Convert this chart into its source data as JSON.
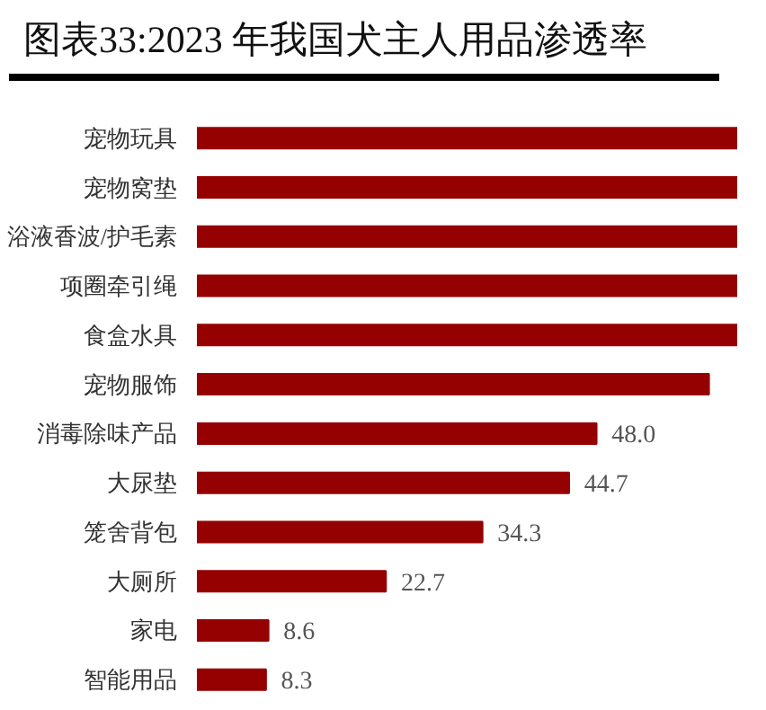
{
  "chart_data": {
    "type": "bar",
    "orientation": "horizontal",
    "title": "图表33:2023 年我国犬主人用品渗透率",
    "categories": [
      "宠物玩具",
      "宠物窝垫",
      "浴液香波/护毛素",
      "项圈牵引绳",
      "食盒水具",
      "宠物服饰",
      "消毒除味产品",
      "大尿垫",
      "笼舍背包",
      "大厕所",
      "家电",
      "智能用品"
    ],
    "values": [
      65,
      65,
      65,
      65,
      65,
      61.5,
      48.0,
      44.7,
      34.3,
      22.7,
      8.6,
      8.3
    ],
    "value_labels": [
      null,
      null,
      null,
      null,
      null,
      null,
      "48.0",
      "44.7",
      "34.3",
      "22.7",
      "8.6",
      "8.3"
    ],
    "color": "#950000",
    "xlim": [
      0,
      65
    ],
    "grid": false
  }
}
